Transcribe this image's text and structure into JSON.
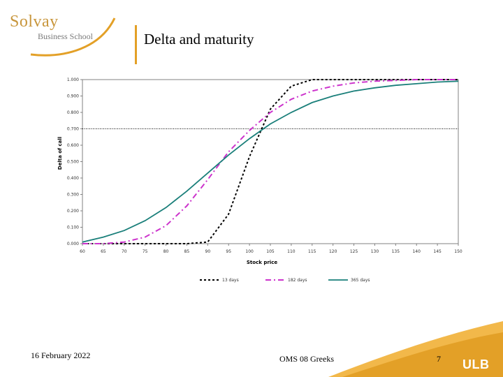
{
  "header": {
    "logo_brand": "Solvay",
    "logo_sub": "Business School",
    "title": "Delta and maturity"
  },
  "footer": {
    "date": "16 February 2022",
    "course": "OMS 08 Greeks",
    "page": "7",
    "university_logo": "ULB"
  },
  "colors": {
    "accent": "#e3a027",
    "series_dotted": "#000000",
    "series_dashdot": "#cc33cc",
    "series_solid": "#1a7f7a"
  },
  "chart_data": {
    "type": "line",
    "xlabel": "Stock price",
    "ylabel": "Delta of call",
    "xlim": [
      60,
      150
    ],
    "ylim": [
      0,
      1
    ],
    "x_ticks": [
      "60",
      "65",
      "70",
      "75",
      "80",
      "85",
      "90",
      "95",
      "100",
      "105",
      "110",
      "115",
      "120",
      "125",
      "130",
      "135",
      "140",
      "145",
      "150"
    ],
    "y_ticks": [
      "0.000",
      "0.100",
      "0.200",
      "0.300",
      "0.400",
      "0.500",
      "0.600",
      "0.700",
      "0.800",
      "0.900",
      "1.000"
    ],
    "reference_line": 0.7,
    "legend_position": "bottom",
    "x": [
      60,
      65,
      70,
      75,
      80,
      85,
      90,
      95,
      100,
      105,
      110,
      115,
      120,
      125,
      130,
      135,
      140,
      145,
      150
    ],
    "series": [
      {
        "name": "13 days",
        "style": "dotted",
        "values": [
          0.0,
          0.0,
          0.0,
          0.0,
          0.0,
          0.0,
          0.01,
          0.18,
          0.53,
          0.82,
          0.96,
          1.0,
          1.0,
          1.0,
          1.0,
          1.0,
          1.0,
          1.0,
          1.0
        ]
      },
      {
        "name": "182 days",
        "style": "dashdot",
        "values": [
          0.0,
          0.0,
          0.01,
          0.04,
          0.11,
          0.23,
          0.39,
          0.56,
          0.69,
          0.8,
          0.88,
          0.93,
          0.96,
          0.98,
          0.99,
          0.995,
          1.0,
          1.0,
          1.0
        ]
      },
      {
        "name": "365 days",
        "style": "solid",
        "values": [
          0.01,
          0.04,
          0.08,
          0.14,
          0.22,
          0.32,
          0.43,
          0.54,
          0.64,
          0.73,
          0.8,
          0.86,
          0.9,
          0.93,
          0.95,
          0.965,
          0.975,
          0.985,
          0.99
        ]
      }
    ]
  }
}
